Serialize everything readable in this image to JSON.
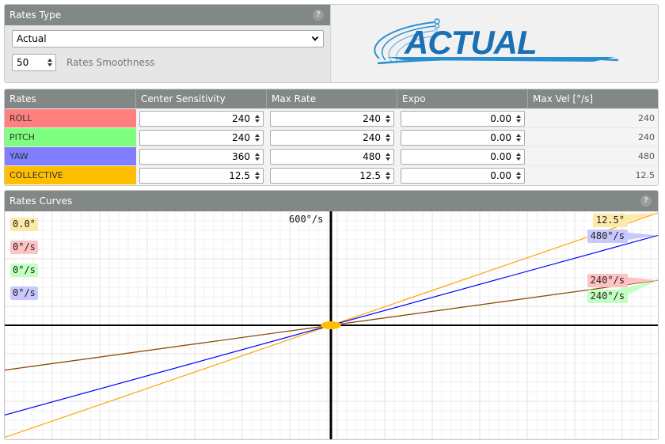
{
  "rates_type": {
    "header": "Rates Type",
    "selected": "Actual",
    "smoothness_value": "50",
    "smoothness_label": "Rates Smoothness"
  },
  "logo": {
    "text": "ACTUAL"
  },
  "table": {
    "headers": [
      "Rates",
      "Center Sensitivity",
      "Max Rate",
      "Expo",
      "Max Vel [°/s]"
    ],
    "rows": [
      {
        "name": "ROLL",
        "color": "#ff7f7f",
        "center": "240",
        "max_rate": "240",
        "expo": "0.00",
        "max_vel": "240"
      },
      {
        "name": "PITCH",
        "color": "#7fff7f",
        "center": "240",
        "max_rate": "240",
        "expo": "0.00",
        "max_vel": "240"
      },
      {
        "name": "YAW",
        "color": "#7f7fff",
        "center": "360",
        "max_rate": "480",
        "expo": "0.00",
        "max_vel": "480"
      },
      {
        "name": "COLLECTIVE",
        "color": "#ffbf00",
        "center": "12.5",
        "max_rate": "12.5",
        "expo": "0.00",
        "max_vel": "12.5"
      }
    ]
  },
  "curves": {
    "header": "Rates Curves",
    "axis_max_label": "600°/s",
    "current_values": [
      {
        "text": "0.0°",
        "color": "#ffe9a8"
      },
      {
        "text": "0°/s",
        "color": "#ffc2c2"
      },
      {
        "text": "0°/s",
        "color": "#c2ffc2"
      },
      {
        "text": "0°/s",
        "color": "#c8c8ff"
      }
    ],
    "end_labels": [
      {
        "text": "12.5°",
        "color": "#ffe9a8"
      },
      {
        "text": "480°/s",
        "color": "#c8c8ff"
      },
      {
        "text": "240°/s",
        "color": "#ffc2c2"
      },
      {
        "text": "240°/s",
        "color": "#c2ffc2"
      }
    ]
  },
  "chart_data": {
    "type": "line",
    "x": [
      -1,
      1
    ],
    "xlabel": "",
    "ylabel": "",
    "ylim": [
      -600,
      600
    ],
    "grid": true,
    "series": [
      {
        "name": "ROLL",
        "color": "#ff0000",
        "values": [
          -240,
          240
        ]
      },
      {
        "name": "PITCH",
        "color": "#00a000",
        "values": [
          -240,
          240
        ]
      },
      {
        "name": "YAW",
        "color": "#0000ff",
        "values": [
          -480,
          480
        ]
      },
      {
        "name": "COLLECTIVE",
        "color": "#ffa500",
        "values": [
          -600,
          600
        ]
      }
    ]
  },
  "colors": {
    "header_bg": "#828885",
    "accent": "#ffbf00"
  }
}
